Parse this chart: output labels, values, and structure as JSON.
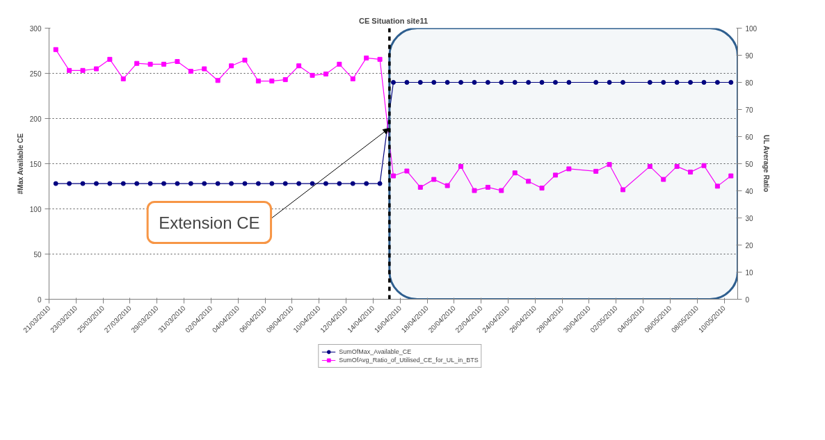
{
  "chart_data": {
    "type": "line",
    "title": "CE Situation site11",
    "ylabel": "#Max Available CE",
    "y2label": "UL Average Ratio",
    "x": [
      "2010-03-21",
      "2010-03-22",
      "2010-03-23",
      "2010-03-24",
      "2010-03-25",
      "2010-03-26",
      "2010-03-27",
      "2010-03-28",
      "2010-03-29",
      "2010-03-30",
      "2010-03-31",
      "2010-04-01",
      "2010-04-02",
      "2010-04-03",
      "2010-04-04",
      "2010-04-05",
      "2010-04-06",
      "2010-04-07",
      "2010-04-08",
      "2010-04-09",
      "2010-04-10",
      "2010-04-11",
      "2010-04-12",
      "2010-04-13",
      "2010-04-14",
      "2010-04-15",
      "2010-04-16",
      "2010-04-17",
      "2010-04-18",
      "2010-04-19",
      "2010-04-20",
      "2010-04-21",
      "2010-04-22",
      "2010-04-23",
      "2010-04-24",
      "2010-04-25",
      "2010-04-26",
      "2010-04-27",
      "2010-04-28",
      "2010-04-30",
      "2010-05-01",
      "2010-05-02",
      "2010-05-04",
      "2010-05-05",
      "2010-05-06",
      "2010-05-07",
      "2010-05-08",
      "2010-05-09",
      "2010-05-10"
    ],
    "series": [
      {
        "name": "SumOfMax_Available_CE",
        "color": "#000080",
        "marker": "circle",
        "values": [
          128,
          128,
          128,
          128,
          128,
          128,
          128,
          128,
          128,
          128,
          128,
          128,
          128,
          128,
          128,
          128,
          128,
          128,
          128,
          128,
          128,
          128,
          128,
          128,
          128,
          240,
          240,
          240,
          240,
          240,
          240,
          240,
          240,
          240,
          240,
          240,
          240,
          240,
          240,
          240,
          240,
          240,
          240,
          240,
          240,
          240,
          240,
          240,
          240
        ]
      },
      {
        "name": "SumOfAvg_Ratio_of_Utilised_CE_for_UL_in_BTS",
        "color": "#ff00ff",
        "marker": "square",
        "axis": "y2",
        "values": [
          92.1,
          84.4,
          84.4,
          85,
          88.5,
          81.3,
          87,
          86.7,
          86.7,
          87.7,
          84.1,
          85,
          80.7,
          86.1,
          88.2,
          80.5,
          80.5,
          81,
          86.1,
          82.6,
          83.1,
          86.7,
          81.3,
          89,
          88.5,
          45.5,
          47.3,
          41.3,
          44.2,
          41.9,
          49,
          40.1,
          41.3,
          40.1,
          46.6,
          43.5,
          41,
          45.8,
          48.1,
          47.2,
          49.7,
          40.4,
          49,
          44.2,
          49,
          46.9,
          49.3,
          41.7,
          45.5
        ]
      }
    ],
    "xlim": [
      "2010-03-20T12:00",
      "2010-05-10T12:00"
    ],
    "xticks": [
      {
        "value": "2010-03-20T12:00",
        "label": "21/03/2010"
      },
      {
        "value": "2010-03-22T12:00",
        "label": "23/03/2010"
      },
      {
        "value": "2010-03-24T12:00",
        "label": "25/03/2010"
      },
      {
        "value": "2010-03-26T12:00",
        "label": "27/03/2010"
      },
      {
        "value": "2010-03-28T12:00",
        "label": "29/03/2010"
      },
      {
        "value": "2010-03-30T12:00",
        "label": "31/03/2010"
      },
      {
        "value": "2010-04-01T12:00",
        "label": "02/04/2010"
      },
      {
        "value": "2010-04-03T12:00",
        "label": "04/04/2010"
      },
      {
        "value": "2010-04-05T12:00",
        "label": "06/04/2010"
      },
      {
        "value": "2010-04-07T12:00",
        "label": "08/04/2010"
      },
      {
        "value": "2010-04-09T12:00",
        "label": "10/04/2010"
      },
      {
        "value": "2010-04-11T12:00",
        "label": "12/04/2010"
      },
      {
        "value": "2010-04-13T12:00",
        "label": "14/04/2010"
      },
      {
        "value": "2010-04-15T12:00",
        "label": "16/04/2010"
      },
      {
        "value": "2010-04-17T12:00",
        "label": "18/04/2010"
      },
      {
        "value": "2010-04-19T12:00",
        "label": "20/04/2010"
      },
      {
        "value": "2010-04-21T12:00",
        "label": "22/04/2010"
      },
      {
        "value": "2010-04-23T12:00",
        "label": "24/04/2010"
      },
      {
        "value": "2010-04-25T12:00",
        "label": "26/04/2010"
      },
      {
        "value": "2010-04-27T12:00",
        "label": "28/04/2010"
      },
      {
        "value": "2010-04-29T12:00",
        "label": "30/04/2010"
      },
      {
        "value": "2010-05-01T12:00",
        "label": "02/05/2010"
      },
      {
        "value": "2010-05-03T12:00",
        "label": "04/05/2010"
      },
      {
        "value": "2010-05-05T12:00",
        "label": "06/05/2010"
      },
      {
        "value": "2010-05-07T12:00",
        "label": "08/05/2010"
      },
      {
        "value": "2010-05-09T12:00",
        "label": "10/05/2010"
      }
    ],
    "ylim": [
      0,
      300
    ],
    "yticks": [
      0,
      50,
      100,
      150,
      200,
      250,
      300
    ],
    "y2lim": [
      0,
      100
    ],
    "y2ticks": [
      0,
      10,
      20,
      30,
      40,
      50,
      60,
      70,
      80,
      90,
      100
    ],
    "grid": "y",
    "legend": "bottom",
    "line_style": "solid",
    "ref_lines": [
      {
        "axis": "x",
        "value": "2010-04-14T17:00",
        "color": "#000000",
        "line_style": "dashed"
      }
    ],
    "bands": [
      {
        "axis": "x",
        "from": "2010-04-14T17:00",
        "to": "2010-05-10T12:00",
        "color": "#2f5f8f"
      }
    ],
    "annotations": [
      {
        "text": "Extension CE",
        "x": "2010-04-14T16:00",
        "y": 189
      }
    ]
  }
}
